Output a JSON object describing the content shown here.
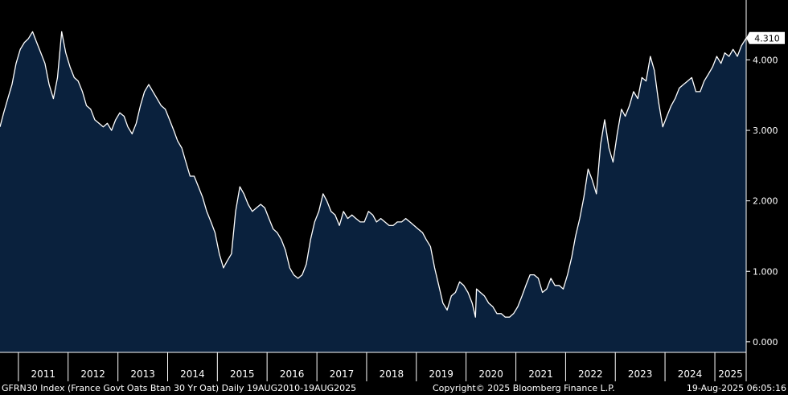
{
  "chart_data": {
    "type": "area",
    "title": "",
    "xlabel": "",
    "ylabel": "",
    "y_axis_side": "right",
    "ylim": [
      -0.15,
      4.85
    ],
    "yticks": [
      0.0,
      1.0,
      2.0,
      3.0,
      4.0
    ],
    "ytick_labels": [
      "0.000",
      "1.000",
      "2.000",
      "3.000",
      "4.000"
    ],
    "xlim": [
      "2010-08-19",
      "2025-08-19"
    ],
    "x_tick_labels": [
      "2011",
      "2012",
      "2013",
      "2014",
      "2015",
      "2016",
      "2017",
      "2018",
      "2019",
      "2020",
      "2021",
      "2022",
      "2023",
      "2024",
      "2025"
    ],
    "last_value_label": "4.310",
    "grid": false,
    "legend": "none",
    "colors": {
      "background": "#000000",
      "area_fill": "#0a213d",
      "line": "#ffffff",
      "axis": "#ffffff",
      "text": "#ffffff"
    },
    "series": [
      {
        "x": [
          "2010-08-19",
          "2010-09-15",
          "2010-10-15",
          "2010-11-15",
          "2010-12-15",
          "2011-01-15",
          "2011-02-15",
          "2011-03-15",
          "2011-04-15",
          "2011-05-15",
          "2011-06-15",
          "2011-07-15",
          "2011-08-15",
          "2011-09-15",
          "2011-10-15",
          "2011-11-15",
          "2011-12-15",
          "2012-01-15",
          "2012-02-15",
          "2012-03-15",
          "2012-04-15",
          "2012-05-15",
          "2012-06-15",
          "2012-07-15",
          "2012-08-15",
          "2012-09-15",
          "2012-10-15",
          "2012-11-15",
          "2012-12-15",
          "2013-01-15",
          "2013-02-15",
          "2013-03-15",
          "2013-04-15",
          "2013-05-15",
          "2013-06-15",
          "2013-07-15",
          "2013-08-15",
          "2013-09-15",
          "2013-10-15",
          "2013-11-15",
          "2013-12-15",
          "2014-01-15",
          "2014-02-15",
          "2014-03-15",
          "2014-04-15",
          "2014-05-15",
          "2014-06-15",
          "2014-07-15",
          "2014-08-15",
          "2014-09-15",
          "2014-10-15",
          "2014-11-15",
          "2014-12-15",
          "2015-01-15",
          "2015-02-15",
          "2015-03-15",
          "2015-04-15",
          "2015-05-15",
          "2015-06-15",
          "2015-07-15",
          "2015-08-15",
          "2015-09-15",
          "2015-10-15",
          "2015-11-15",
          "2015-12-15",
          "2016-01-15",
          "2016-02-15",
          "2016-03-15",
          "2016-04-15",
          "2016-05-15",
          "2016-06-15",
          "2016-07-15",
          "2016-08-15",
          "2016-09-15",
          "2016-10-15",
          "2016-11-15",
          "2016-12-15",
          "2017-01-15",
          "2017-02-15",
          "2017-03-15",
          "2017-04-15",
          "2017-05-15",
          "2017-06-15",
          "2017-07-15",
          "2017-08-15",
          "2017-09-15",
          "2017-10-15",
          "2017-11-15",
          "2017-12-15",
          "2018-01-15",
          "2018-02-15",
          "2018-03-15",
          "2018-04-15",
          "2018-05-15",
          "2018-06-15",
          "2018-07-15",
          "2018-08-15",
          "2018-09-15",
          "2018-10-15",
          "2018-11-15",
          "2018-12-15",
          "2019-01-15",
          "2019-02-15",
          "2019-03-15",
          "2019-04-15",
          "2019-05-15",
          "2019-06-15",
          "2019-07-15",
          "2019-08-15",
          "2019-09-15",
          "2019-10-15",
          "2019-11-15",
          "2019-12-15",
          "2020-01-15",
          "2020-02-15",
          "2020-03-10",
          "2020-03-18",
          "2020-04-15",
          "2020-05-15",
          "2020-06-15",
          "2020-07-15",
          "2020-08-15",
          "2020-09-15",
          "2020-10-15",
          "2020-11-15",
          "2020-12-15",
          "2021-01-15",
          "2021-02-15",
          "2021-03-15",
          "2021-04-15",
          "2021-05-15",
          "2021-06-15",
          "2021-07-15",
          "2021-08-15",
          "2021-09-15",
          "2021-10-15",
          "2021-11-15",
          "2021-12-15",
          "2022-01-15",
          "2022-02-15",
          "2022-03-15",
          "2022-04-15",
          "2022-05-15",
          "2022-06-15",
          "2022-07-15",
          "2022-08-15",
          "2022-09-15",
          "2022-10-15",
          "2022-11-15",
          "2022-12-15",
          "2023-01-15",
          "2023-02-15",
          "2023-03-15",
          "2023-04-15",
          "2023-05-15",
          "2023-06-15",
          "2023-07-15",
          "2023-08-15",
          "2023-09-15",
          "2023-10-15",
          "2023-11-15",
          "2023-12-15",
          "2024-01-15",
          "2024-02-15",
          "2024-03-15",
          "2024-04-15",
          "2024-05-15",
          "2024-06-15",
          "2024-07-15",
          "2024-08-15",
          "2024-09-15",
          "2024-10-15",
          "2024-11-15",
          "2024-12-15",
          "2025-01-15",
          "2025-02-15",
          "2025-03-15",
          "2025-04-15",
          "2025-05-15",
          "2025-06-15",
          "2025-07-15",
          "2025-08-19"
        ],
        "y": [
          3.05,
          3.25,
          3.45,
          3.65,
          3.95,
          4.15,
          4.25,
          4.3,
          4.4,
          4.25,
          4.1,
          3.95,
          3.65,
          3.45,
          3.75,
          4.4,
          4.1,
          3.9,
          3.75,
          3.7,
          3.55,
          3.35,
          3.3,
          3.15,
          3.1,
          3.05,
          3.1,
          3.0,
          3.15,
          3.25,
          3.2,
          3.05,
          2.95,
          3.1,
          3.35,
          3.55,
          3.65,
          3.55,
          3.45,
          3.35,
          3.3,
          3.15,
          3.0,
          2.85,
          2.75,
          2.55,
          2.35,
          2.35,
          2.2,
          2.05,
          1.85,
          1.7,
          1.55,
          1.25,
          1.05,
          1.15,
          1.25,
          1.85,
          2.2,
          2.1,
          1.95,
          1.85,
          1.9,
          1.95,
          1.9,
          1.75,
          1.6,
          1.55,
          1.45,
          1.3,
          1.05,
          0.95,
          0.9,
          0.95,
          1.1,
          1.45,
          1.7,
          1.85,
          2.1,
          2.0,
          1.85,
          1.8,
          1.65,
          1.85,
          1.75,
          1.8,
          1.75,
          1.7,
          1.7,
          1.85,
          1.8,
          1.7,
          1.75,
          1.7,
          1.65,
          1.65,
          1.7,
          1.7,
          1.75,
          1.7,
          1.65,
          1.6,
          1.55,
          1.45,
          1.35,
          1.05,
          0.8,
          0.55,
          0.45,
          0.65,
          0.7,
          0.85,
          0.8,
          0.7,
          0.55,
          0.35,
          0.75,
          0.7,
          0.65,
          0.55,
          0.5,
          0.4,
          0.4,
          0.35,
          0.35,
          0.4,
          0.5,
          0.65,
          0.8,
          0.95,
          0.95,
          0.9,
          0.7,
          0.75,
          0.9,
          0.8,
          0.8,
          0.75,
          0.95,
          1.2,
          1.5,
          1.75,
          2.05,
          2.45,
          2.3,
          2.1,
          2.8,
          3.15,
          2.75,
          2.55,
          2.95,
          3.3,
          3.2,
          3.35,
          3.55,
          3.45,
          3.75,
          3.7,
          4.05,
          3.85,
          3.4,
          3.05,
          3.2,
          3.35,
          3.45,
          3.6,
          3.65,
          3.7,
          3.75,
          3.55,
          3.55,
          3.7,
          3.8,
          3.9,
          4.05,
          3.95,
          4.1,
          4.05,
          4.15,
          4.05,
          4.2,
          4.31
        ]
      }
    ]
  },
  "footer": {
    "left": "GFRN30 Index (France Govt Oats Btan 30 Yr Oat)  Daily 19AUG2010-19AUG2025",
    "center": "Copyright© 2025 Bloomberg Finance L.P.",
    "right": "19-Aug-2025 06:05:16"
  }
}
